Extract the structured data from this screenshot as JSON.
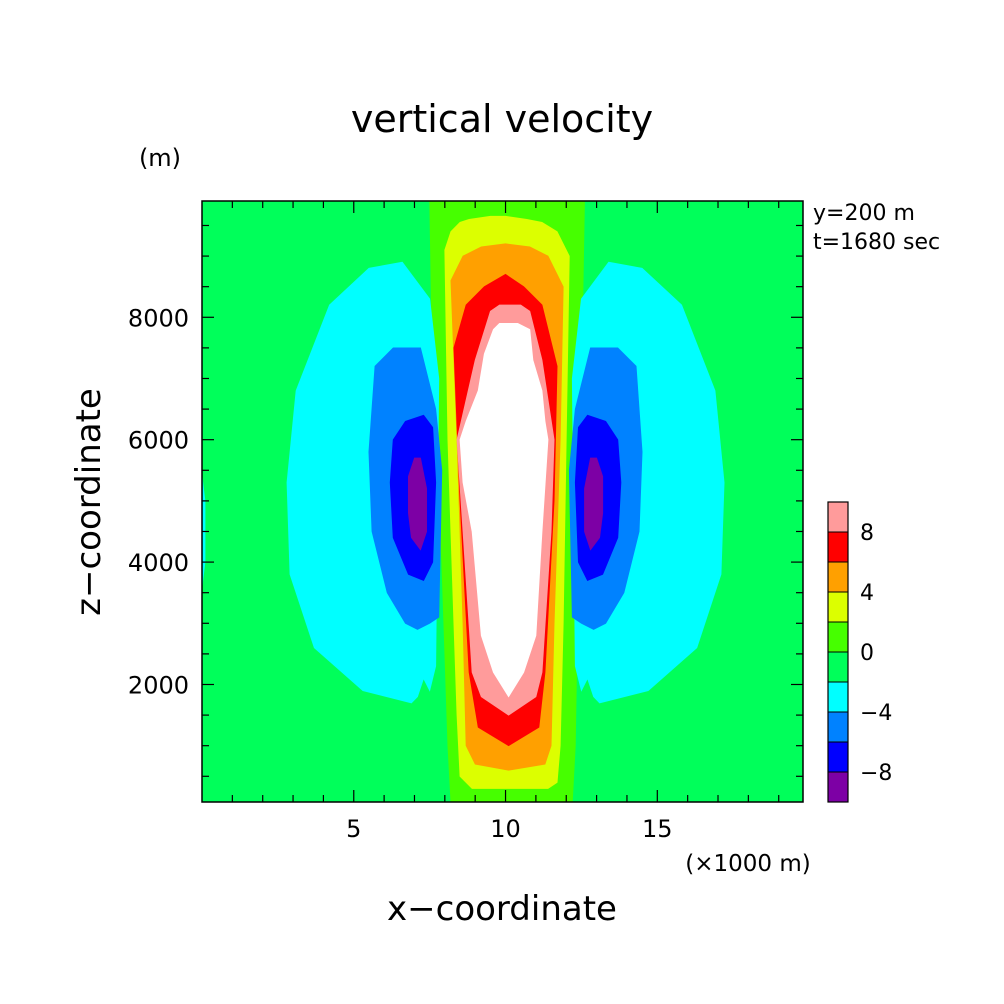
{
  "chart_data": {
    "type": "heatmap",
    "title": "vertical velocity",
    "xlabel": "x−coordinate",
    "ylabel": "z−coordinate",
    "x_unit": "(×1000 m)",
    "y_unit": "(m)",
    "annotations": [
      "y=200 m",
      "t=1680 sec"
    ],
    "xlim": [
      0,
      19.8
    ],
    "ylim": [
      80,
      9900
    ],
    "x_ticks": [
      5,
      10,
      15
    ],
    "y_ticks": [
      2000,
      4000,
      6000,
      8000
    ],
    "colorbar": {
      "levels": [
        -10,
        -8,
        -6,
        -4,
        -2,
        0,
        2,
        4,
        6,
        8,
        10
      ],
      "tick_labels": [
        "−8",
        "−4",
        "0",
        "4",
        "8"
      ],
      "tick_values": [
        -8,
        -4,
        0,
        4,
        8
      ],
      "colors": [
        "#7d00a5",
        "#0000ff",
        "#0082ff",
        "#00ffff",
        "#00ff5a",
        "#46ff00",
        "#dcff00",
        "#ffa000",
        "#ff0000",
        "#ff9b9b"
      ],
      "above_max_color": "#ffffff"
    },
    "contour_regions": [
      {
        "level": 0,
        "color": "#46ff00",
        "x": [
          7.5,
          7.6,
          7.9,
          8.1,
          8.2,
          12.2,
          12.3,
          12.4,
          12.5,
          12.6,
          12.1,
          7.5
        ],
        "z": [
          9900,
          7000,
          4000,
          1000,
          80,
          80,
          1000,
          4000,
          7000,
          9900,
          9900,
          9900
        ]
      },
      {
        "level": 2,
        "color": "#dcff00",
        "x": [
          8.0,
          8.2,
          8.5,
          8.8,
          9.5,
          10.0,
          10.7,
          11.2,
          11.7,
          12.1,
          12.0,
          11.9,
          11.8,
          11.7,
          11.4,
          10.2,
          8.9,
          8.5,
          8.4,
          8.3,
          8.1,
          8.0
        ],
        "z": [
          9100,
          9400,
          9550,
          9600,
          9650,
          9650,
          9600,
          9550,
          9400,
          9000,
          6000,
          3000,
          1000,
          400,
          300,
          300,
          300,
          500,
          1500,
          3000,
          6000,
          9100
        ]
      },
      {
        "level": 4,
        "color": "#ffa000",
        "x": [
          8.2,
          8.6,
          9.2,
          10.0,
          10.8,
          11.4,
          11.9,
          11.8,
          11.6,
          11.5,
          11.3,
          10.1,
          9.0,
          8.7,
          8.6,
          8.4,
          8.2
        ],
        "z": [
          8600,
          9000,
          9150,
          9200,
          9150,
          9000,
          8500,
          6000,
          3000,
          1000,
          700,
          600,
          700,
          1000,
          3000,
          6000,
          8600
        ]
      },
      {
        "level": 6,
        "color": "#ff0000",
        "x": [
          8.3,
          8.7,
          9.3,
          10.0,
          10.6,
          11.2,
          11.7,
          11.6,
          11.3,
          11.1,
          10.1,
          9.1,
          8.8,
          8.5,
          8.3
        ],
        "z": [
          7500,
          8200,
          8500,
          8700,
          8500,
          8200,
          7200,
          5000,
          2200,
          1300,
          1000,
          1300,
          2200,
          5000,
          7500
        ]
      },
      {
        "level": 8,
        "color": "#ff9b9b",
        "x": [
          8.4,
          9.0,
          9.5,
          9.8,
          10.5,
          10.8,
          11.2,
          11.6,
          11.5,
          11.2,
          11.0,
          10.1,
          9.2,
          8.9,
          8.6,
          8.4
        ],
        "z": [
          6000,
          7300,
          8100,
          8200,
          8200,
          8100,
          7300,
          6000,
          4500,
          2200,
          1800,
          1500,
          1800,
          2200,
          4500,
          6000
        ]
      },
      {
        "level": 10,
        "color": "#ffffff",
        "x": [
          8.5,
          8.7,
          9.1,
          9.3,
          9.6,
          9.8,
          10.4,
          10.8,
          10.9,
          11.2,
          11.3,
          11.4,
          11.2,
          11.0,
          10.6,
          10.1,
          9.6,
          9.2,
          8.9,
          8.6,
          8.5
        ],
        "z": [
          6000,
          6300,
          6800,
          7400,
          7800,
          7900,
          7900,
          7800,
          7300,
          6800,
          6300,
          6000,
          4500,
          2800,
          2200,
          1800,
          2200,
          2800,
          4500,
          5300,
          6000
        ]
      },
      {
        "level": -2,
        "color": "#00ffff",
        "x": [
          5.5,
          4.2,
          3.1,
          2.8,
          2.9,
          3.7,
          5.3,
          6.9,
          7.1,
          7.3,
          7.5,
          7.7,
          7.8,
          7.5,
          6.6,
          5.5
        ],
        "z": [
          8800,
          8200,
          6800,
          5300,
          3800,
          2600,
          1900,
          1700,
          1800,
          2100,
          1900,
          2300,
          7000,
          8300,
          8900,
          8800
        ]
      },
      {
        "level": -4,
        "color": "#0082ff",
        "x": [
          6.3,
          5.7,
          5.5,
          5.6,
          6.1,
          6.7,
          7.1,
          7.5,
          7.8,
          7.9,
          7.7,
          7.2,
          6.3
        ],
        "z": [
          7500,
          7200,
          5800,
          4500,
          3500,
          3000,
          2900,
          3000,
          3100,
          5500,
          6500,
          7500,
          7500
        ]
      },
      {
        "level": -6,
        "color": "#0000ff",
        "x": [
          6.7,
          6.3,
          6.2,
          6.3,
          6.8,
          7.3,
          7.6,
          7.7,
          7.6,
          7.3,
          6.7
        ],
        "z": [
          6300,
          6000,
          5300,
          4400,
          3800,
          3700,
          4000,
          5300,
          6200,
          6400,
          6300
        ]
      },
      {
        "level": -8,
        "color": "#7d00a5",
        "x": [
          7.0,
          6.8,
          6.8,
          6.9,
          7.2,
          7.4,
          7.4,
          7.2,
          7.0
        ],
        "z": [
          5700,
          5400,
          4800,
          4400,
          4200,
          4500,
          5200,
          5700,
          5700
        ]
      },
      {
        "level": -2,
        "color": "#00ffff",
        "x": [
          14.5,
          15.8,
          16.9,
          17.2,
          17.1,
          16.3,
          14.7,
          13.1,
          12.9,
          12.7,
          12.5,
          12.3,
          12.2,
          12.5,
          13.4,
          14.5
        ],
        "z": [
          8800,
          8200,
          6800,
          5300,
          3800,
          2600,
          1900,
          1700,
          1800,
          2100,
          1900,
          2300,
          7000,
          8300,
          8900,
          8800
        ]
      },
      {
        "level": -4,
        "color": "#0082ff",
        "x": [
          13.7,
          14.3,
          14.5,
          14.4,
          13.9,
          13.3,
          12.9,
          12.5,
          12.2,
          12.1,
          12.3,
          12.8,
          13.7
        ],
        "z": [
          7500,
          7200,
          5800,
          4500,
          3500,
          3000,
          2900,
          3000,
          3100,
          5500,
          6500,
          7500,
          7500
        ]
      },
      {
        "level": -6,
        "color": "#0000ff",
        "x": [
          13.3,
          13.7,
          13.8,
          13.7,
          13.2,
          12.7,
          12.4,
          12.3,
          12.4,
          12.7,
          13.3
        ],
        "z": [
          6300,
          6000,
          5300,
          4400,
          3800,
          3700,
          4000,
          5300,
          6200,
          6400,
          6300
        ]
      },
      {
        "level": -8,
        "color": "#7d00a5",
        "x": [
          13.0,
          13.2,
          13.2,
          13.1,
          12.8,
          12.6,
          12.6,
          12.8,
          13.0
        ],
        "z": [
          5700,
          5400,
          4800,
          4400,
          4200,
          4500,
          5200,
          5700,
          5700
        ]
      },
      {
        "level": -2,
        "color": "#00ffff",
        "x": [
          0.0,
          0.1,
          0.1,
          0.0
        ],
        "z": [
          5400,
          5000,
          4000,
          3600
        ]
      }
    ]
  }
}
